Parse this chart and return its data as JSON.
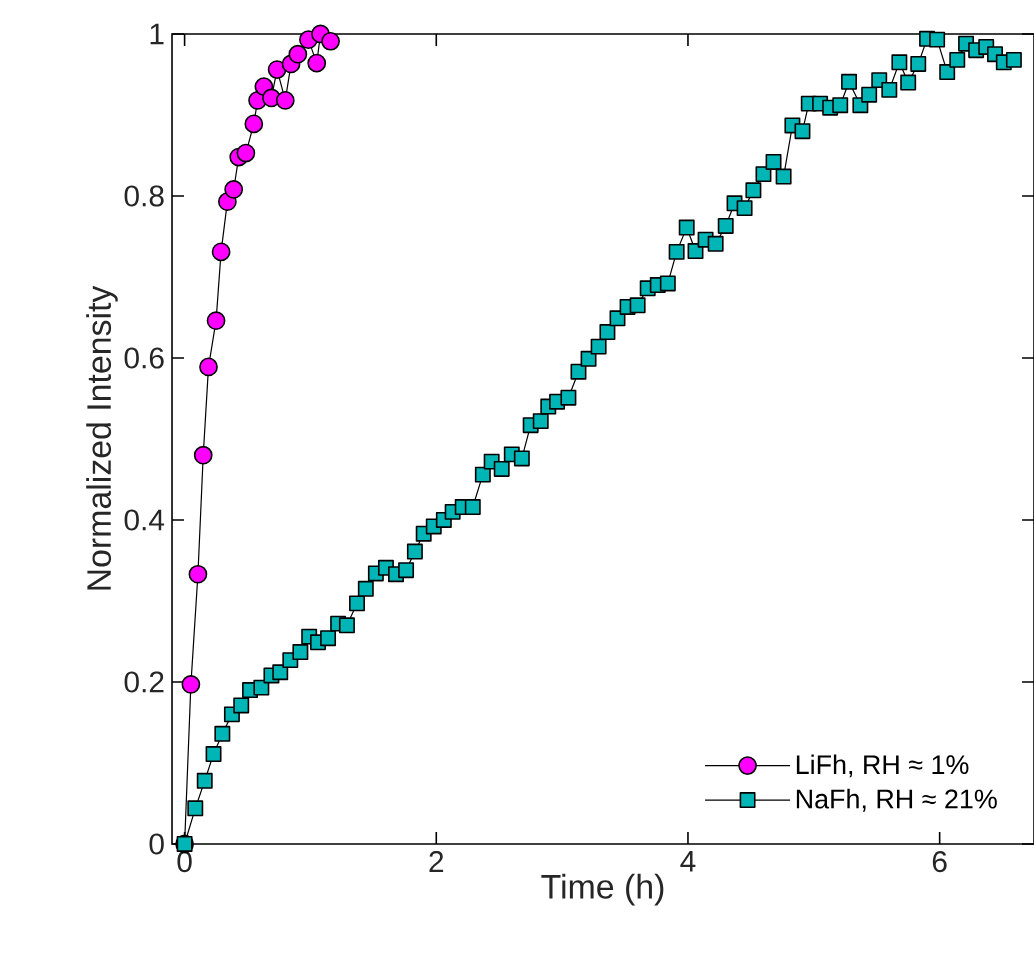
{
  "chart_data": {
    "type": "line",
    "xlabel": "Time (h)",
    "ylabel": "Normalized Intensity",
    "xlim": [
      -0.1,
      6.75
    ],
    "ylim": [
      0,
      1
    ],
    "xticks": [
      0,
      2,
      4,
      6
    ],
    "yticks": [
      0,
      0.2,
      0.4,
      0.6,
      0.8,
      1
    ],
    "grid": false,
    "legend": "bottom right",
    "line_style": "solid",
    "series": [
      {
        "name": "LiFh, RH ≈ 1%",
        "color": "#ff00ff",
        "marker": "circle",
        "x": [
          0,
          0.05,
          0.106,
          0.148,
          0.19,
          0.25,
          0.29,
          0.34,
          0.39,
          0.43,
          0.487,
          0.55,
          0.58,
          0.63,
          0.69,
          0.735,
          0.8,
          0.846,
          0.9,
          0.984,
          1.05,
          1.08,
          1.16
        ],
        "values": [
          0,
          0.197,
          0.333,
          0.48,
          0.589,
          0.646,
          0.731,
          0.793,
          0.808,
          0.848,
          0.853,
          0.889,
          0.918,
          0.935,
          0.921,
          0.956,
          0.918,
          0.963,
          0.975,
          0.993,
          0.964,
          1.0,
          0.991
        ]
      },
      {
        "name": "NaFh, RH ≈ 21%",
        "color": "#00b5b5",
        "marker": "square",
        "x": [
          0,
          0.085,
          0.16,
          0.23,
          0.3,
          0.376,
          0.45,
          0.52,
          0.61,
          0.69,
          0.76,
          0.84,
          0.92,
          0.99,
          1.06,
          1.14,
          1.22,
          1.29,
          1.37,
          1.44,
          1.52,
          1.6,
          1.68,
          1.76,
          1.83,
          1.9,
          1.98,
          2.06,
          2.13,
          2.21,
          2.29,
          2.37,
          2.44,
          2.52,
          2.6,
          2.68,
          2.75,
          2.83,
          2.89,
          2.96,
          3.05,
          3.13,
          3.21,
          3.29,
          3.36,
          3.44,
          3.52,
          3.6,
          3.68,
          3.76,
          3.84,
          3.91,
          3.99,
          4.06,
          4.14,
          4.22,
          4.3,
          4.37,
          4.45,
          4.52,
          4.6,
          4.68,
          4.76,
          4.83,
          4.91,
          4.96,
          5.05,
          5.13,
          5.21,
          5.28,
          5.37,
          5.44,
          5.52,
          5.6,
          5.68,
          5.75,
          5.83,
          5.9,
          5.98,
          6.06,
          6.14,
          6.21,
          6.29,
          6.37,
          6.44,
          6.51,
          6.59
        ],
        "values": [
          0,
          0.044,
          0.078,
          0.111,
          0.136,
          0.16,
          0.171,
          0.19,
          0.193,
          0.208,
          0.212,
          0.227,
          0.237,
          0.256,
          0.249,
          0.254,
          0.272,
          0.27,
          0.297,
          0.315,
          0.334,
          0.341,
          0.333,
          0.338,
          0.361,
          0.383,
          0.392,
          0.4,
          0.41,
          0.416,
          0.416,
          0.456,
          0.472,
          0.463,
          0.481,
          0.476,
          0.517,
          0.522,
          0.54,
          0.546,
          0.551,
          0.583,
          0.599,
          0.614,
          0.632,
          0.649,
          0.663,
          0.665,
          0.686,
          0.69,
          0.692,
          0.731,
          0.761,
          0.732,
          0.746,
          0.741,
          0.763,
          0.791,
          0.785,
          0.807,
          0.827,
          0.842,
          0.824,
          0.887,
          0.88,
          0.914,
          0.914,
          0.909,
          0.912,
          0.941,
          0.912,
          0.925,
          0.943,
          0.931,
          0.965,
          0.94,
          0.963,
          0.994,
          0.993,
          0.953,
          0.968,
          0.988,
          0.98,
          0.984,
          0.975,
          0.965,
          0.968
        ]
      }
    ]
  }
}
